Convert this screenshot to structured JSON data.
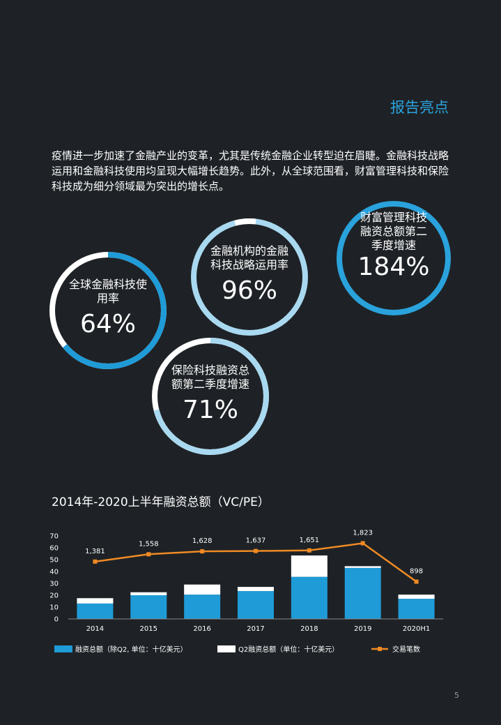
{
  "header": {
    "title": "报告亮点"
  },
  "intro": "疫情进一步加速了金融产业的变革，尤其是传统金融企业转型迫在眉睫。金融科技战略运用和金融科技使用均呈现大幅增长趋势。此外，从全球范围看，财富管理科技和保险科技成为细分领域最为突出的增长点。",
  "highlights": [
    {
      "label": "全球金融科技使用率",
      "value": "64%"
    },
    {
      "label": "金融机构的金融科技战略运用率",
      "value": "96%"
    },
    {
      "label": "财富管理科技融资总额第二季度增速",
      "value": "184%"
    },
    {
      "label": "保险科技融资总额第二季度增速",
      "value": "71%"
    }
  ],
  "chart_data": {
    "type": "bar",
    "stacked": true,
    "title": "2014年-2020上半年融资总额（VC/PE）",
    "categories": [
      "2014",
      "2015",
      "2016",
      "2017",
      "2018",
      "2019",
      "2020H1"
    ],
    "series": [
      {
        "name": "融资总额（除Q2, 单位：十亿美元）",
        "color": "#1f9bd7",
        "values": [
          13,
          20,
          20.5,
          23.5,
          35.5,
          43,
          17
        ]
      },
      {
        "name": "Q2融资总额（单位：十亿美元）",
        "color": "#ffffff",
        "values": [
          4.5,
          2.5,
          8.5,
          3.5,
          18,
          1.5,
          3.5
        ]
      },
      {
        "name": "交易笔数",
        "type": "line",
        "axis": "y2",
        "color": "#f08a24",
        "values": [
          1381,
          1558,
          1628,
          1637,
          1651,
          1823,
          898
        ],
        "value_labels": [
          "1,381",
          "1,558",
          "1,628",
          "1,637",
          "1,651",
          "1,823",
          "898"
        ]
      }
    ],
    "ylim": [
      0,
      70
    ],
    "yticks": [
      0,
      10,
      20,
      30,
      40,
      50,
      60,
      70
    ],
    "y2lim": [
      0,
      2000
    ]
  },
  "page_number": "5"
}
